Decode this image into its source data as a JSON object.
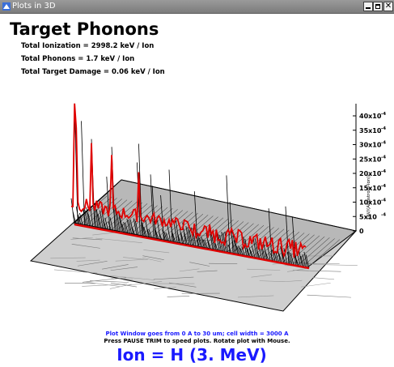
{
  "window": {
    "title": "Plots in 3D",
    "minimize_icon": "minimize-icon",
    "maximize_icon": "maximize-icon",
    "close_icon": "close-icon",
    "app_icon": "app-icon"
  },
  "header": {
    "title": "Target Phonons",
    "stats": [
      "Total Ionization = 2998.2 keV / Ion",
      "Total Phonons = 1.7 keV / Ion",
      "Total Target Damage = 0.06 keV / Ion"
    ]
  },
  "chart_data": {
    "type": "surface-3d",
    "title": "Target Phonons",
    "zlabel": "(eV/(Angstrom-Ion))",
    "z_ticks": [
      "40x10",
      "35x10",
      "30x10",
      "25x10",
      "20x10",
      "15x10",
      "10x10",
      "5x10",
      "0"
    ],
    "z_tick_exponent": "-4",
    "zlim": [
      0,
      40
    ],
    "series_color": "#e00000"
  },
  "footer": {
    "line1": "Plot Window goes from 0 A to 30 um;  cell width = 3000 A",
    "line2": "Press PAUSE TRIM to speed plots.    Rotate plot with Mouse.",
    "ion": "Ion =  H (3. MeV)"
  }
}
